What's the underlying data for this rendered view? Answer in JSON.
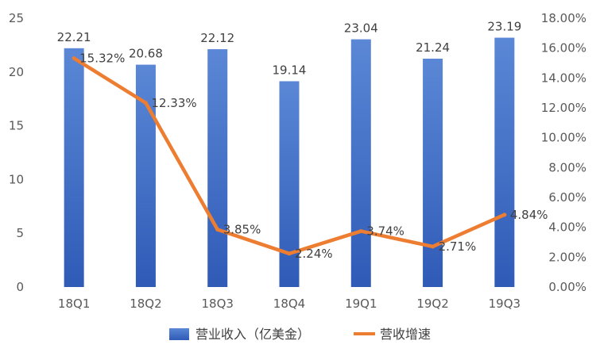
{
  "chart_data": {
    "type": "bar",
    "categories": [
      "18Q1",
      "18Q2",
      "18Q3",
      "18Q4",
      "19Q1",
      "19Q2",
      "19Q3"
    ],
    "series": [
      {
        "name": "营业收入（亿美金）",
        "type": "bar",
        "axis": "left",
        "color": "#4472C4",
        "values": [
          22.21,
          20.68,
          22.12,
          19.14,
          23.04,
          21.24,
          23.19
        ],
        "labels": [
          "22.21",
          "20.68",
          "22.12",
          "19.14",
          "23.04",
          "21.24",
          "23.19"
        ]
      },
      {
        "name": "营收增速",
        "type": "line",
        "axis": "right",
        "color": "#ED7D31",
        "values": [
          15.32,
          12.33,
          3.85,
          2.24,
          3.74,
          2.71,
          4.84
        ],
        "labels": [
          "15.32%",
          "12.33%",
          "3.85%",
          "2.24%",
          "3.74%",
          "2.71%",
          "4.84%"
        ]
      }
    ],
    "left_axis": {
      "min": 0,
      "max": 25,
      "ticks": [
        "0",
        "5",
        "10",
        "15",
        "20",
        "25"
      ]
    },
    "right_axis": {
      "min": 0,
      "max": 18,
      "ticks": [
        "0.00%",
        "2.00%",
        "4.00%",
        "6.00%",
        "8.00%",
        "10.00%",
        "12.00%",
        "14.00%",
        "16.00%",
        "18.00%"
      ]
    },
    "grid": false,
    "legend": "bottom"
  }
}
